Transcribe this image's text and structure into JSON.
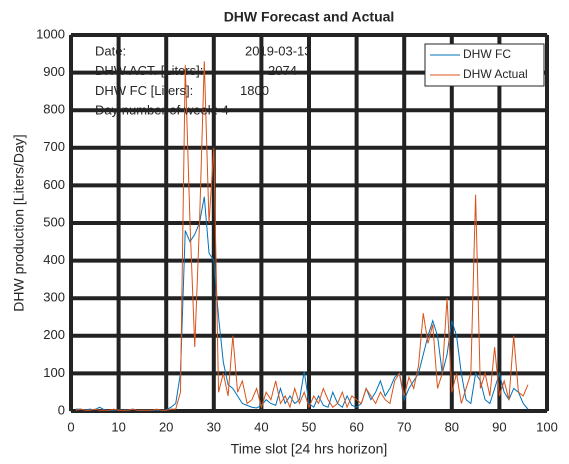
{
  "chart_data": {
    "type": "line",
    "title": "DHW Forecast and Actual",
    "x_label": "Time slot [24 hrs horizon]",
    "y_label": "DHW production [Liters/Day]",
    "xlim": [
      0,
      100
    ],
    "xticks": [
      0,
      10,
      20,
      30,
      40,
      50,
      60,
      70,
      80,
      90,
      100
    ],
    "ylim": [
      0,
      1000
    ],
    "yticks": [
      0,
      100,
      200,
      300,
      400,
      500,
      600,
      700,
      800,
      900,
      1000
    ],
    "grid": true,
    "legend": "upper right",
    "annotations": [
      {
        "label": "Date:",
        "value": "2019-03-13"
      },
      {
        "label": "DHW ACT. [Liters]:",
        "value": "2074"
      },
      {
        "label": "DHW FC [Liters]:",
        "value": "1800"
      },
      {
        "label": "Day number of week: 4"
      }
    ],
    "x": [
      1,
      2,
      3,
      4,
      5,
      6,
      7,
      8,
      9,
      10,
      11,
      12,
      13,
      14,
      15,
      16,
      17,
      18,
      19,
      20,
      21,
      22,
      23,
      24,
      25,
      26,
      27,
      28,
      29,
      30,
      31,
      32,
      33,
      34,
      35,
      36,
      37,
      38,
      39,
      40,
      41,
      42,
      43,
      44,
      45,
      46,
      47,
      48,
      49,
      50,
      51,
      52,
      53,
      54,
      55,
      56,
      57,
      58,
      59,
      60,
      61,
      62,
      63,
      64,
      65,
      66,
      67,
      68,
      69,
      70,
      71,
      72,
      73,
      74,
      75,
      76,
      77,
      78,
      79,
      80,
      81,
      82,
      83,
      84,
      85,
      86,
      87,
      88,
      89,
      90,
      91,
      92,
      93,
      94,
      95,
      96
    ],
    "series": [
      {
        "name": "DHW FC",
        "color": "#0072bd",
        "values": [
          5,
          5,
          3,
          5,
          3,
          10,
          3,
          2,
          2,
          3,
          2,
          3,
          5,
          2,
          2,
          2,
          2,
          2,
          2,
          3,
          10,
          20,
          100,
          480,
          450,
          470,
          500,
          570,
          420,
          400,
          250,
          130,
          70,
          60,
          40,
          20,
          15,
          10,
          8,
          15,
          30,
          20,
          15,
          60,
          20,
          40,
          20,
          30,
          105,
          20,
          10,
          40,
          15,
          10,
          50,
          20,
          10,
          40,
          15,
          10,
          20,
          60,
          30,
          50,
          80,
          40,
          60,
          90,
          100,
          30,
          60,
          80,
          100,
          150,
          200,
          240,
          200,
          100,
          150,
          240,
          200,
          100,
          30,
          20,
          100,
          80,
          30,
          20,
          60,
          100,
          50,
          30,
          60,
          50,
          20,
          5
        ]
      },
      {
        "name": "DHW Actual",
        "color": "#d95319",
        "values": [
          2,
          5,
          2,
          2,
          5,
          2,
          2,
          2,
          5,
          2,
          2,
          2,
          5,
          2,
          2,
          2,
          2,
          5,
          2,
          2,
          5,
          5,
          50,
          920,
          500,
          170,
          500,
          930,
          500,
          700,
          50,
          100,
          40,
          200,
          50,
          80,
          20,
          30,
          60,
          10,
          50,
          30,
          80,
          20,
          40,
          10,
          60,
          20,
          50,
          10,
          40,
          20,
          60,
          30,
          10,
          20,
          50,
          10,
          40,
          30,
          20,
          60,
          40,
          20,
          50,
          30,
          20,
          80,
          100,
          40,
          90,
          60,
          120,
          260,
          180,
          230,
          60,
          100,
          300,
          50,
          100,
          20,
          60,
          100,
          575,
          60,
          100,
          40,
          170,
          40,
          80,
          30,
          200,
          50,
          40,
          70
        ]
      }
    ]
  }
}
